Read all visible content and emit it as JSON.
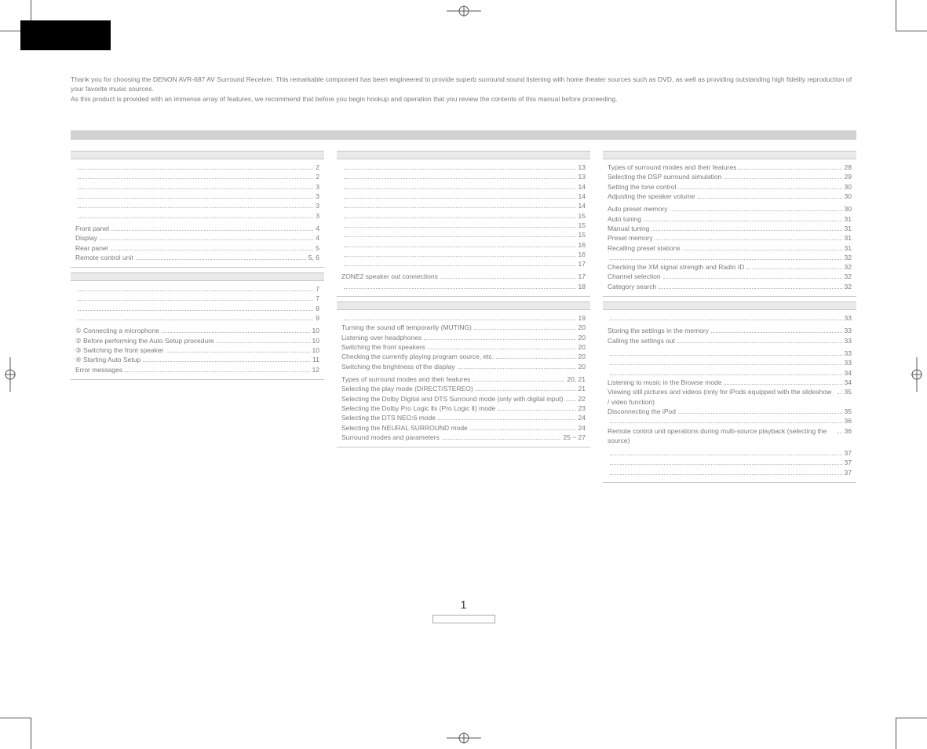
{
  "colors": {
    "text": "#7a7a7a",
    "bg": "#ffffff",
    "blackTab": "#000000",
    "hr": "#d2d2d2",
    "boxHead": "#e9e9e9",
    "border": "#c7c7c7",
    "dots": "#b5b5b5"
  },
  "typography": {
    "fontFamily": "Arial, Helvetica, sans-serif",
    "baseSize": 8.5
  },
  "intro": {
    "line1": "Thank you for choosing the DENON AVR-687 AV Surround Receiver. This remarkable component has been engineered to provide superb surround sound listening with home theater sources such as DVD, as well as providing outstanding high fidelity reproduction of your favorite music sources.",
    "line2": "As this product is provided with an immense array of features, we recommend that before you begin hookup and operation that you review the contents of this manual before proceeding."
  },
  "pageNumber": "1",
  "col1": {
    "box1": {
      "items": [
        {
          "label": "",
          "page": "2"
        },
        {
          "label": "",
          "page": "2"
        },
        {
          "label": "",
          "page": "3"
        },
        {
          "label": "",
          "page": "3"
        },
        {
          "label": "",
          "page": "3"
        },
        {
          "label": "",
          "page": "3"
        }
      ],
      "subhead1": "",
      "items2": [
        {
          "label": "Front panel",
          "page": "4"
        },
        {
          "label": "Display",
          "page": "4"
        },
        {
          "label": "Rear panel",
          "page": "5"
        },
        {
          "label": "Remote control unit",
          "page": "5, 6"
        }
      ]
    },
    "box2": {
      "items": [
        {
          "label": "",
          "page": "7"
        },
        {
          "label": "",
          "page": "7"
        },
        {
          "label": "",
          "page": "8"
        },
        {
          "label": "",
          "page": "9"
        }
      ],
      "subhead1": "",
      "items2": [
        {
          "label": "① Connecting a microphone",
          "page": "10"
        },
        {
          "label": "② Before performing the Auto Setup procedure",
          "page": "10"
        },
        {
          "label": "③ Switching the front speaker",
          "page": "10"
        },
        {
          "label": "④ Starting Auto Setup",
          "page": "11"
        },
        {
          "label": "Error messages",
          "page": "12"
        }
      ]
    }
  },
  "col2": {
    "box1": {
      "items": [
        {
          "label": "",
          "page": "13"
        },
        {
          "label": "",
          "page": "13"
        },
        {
          "label": "",
          "page": "14"
        },
        {
          "label": "",
          "page": "14"
        },
        {
          "label": "",
          "page": "14"
        },
        {
          "label": "",
          "page": "15"
        },
        {
          "label": "",
          "page": "15"
        },
        {
          "label": "",
          "page": "15"
        },
        {
          "label": "",
          "page": "16"
        },
        {
          "label": "",
          "page": "16"
        },
        {
          "label": "",
          "page": "17"
        }
      ],
      "subhead1": "",
      "items2": [
        {
          "label": "ZONE2 speaker out connections",
          "page": "17"
        },
        {
          "label": "",
          "page": "18"
        }
      ]
    },
    "box2": {
      "items": [
        {
          "label": "",
          "page": "19"
        },
        {
          "label": "Turning the sound off temporarily (MUTING)",
          "page": "20"
        },
        {
          "label": "Listening over headphones",
          "page": "20"
        },
        {
          "label": "Switching the front speakers",
          "page": "20"
        },
        {
          "label": "Checking the currently playing program source, etc.",
          "page": "20"
        },
        {
          "label": "Switching the brightness of the display",
          "page": "20"
        }
      ],
      "subhead1": "",
      "items2": [
        {
          "label": "Types of surround modes and their features",
          "page": "20, 21"
        },
        {
          "label": "Selecting the play mode (DIRECT/STEREO)",
          "page": "21"
        },
        {
          "label": "Selecting the Dolby Digital and DTS Surround mode (only with digital input)",
          "page": "22"
        },
        {
          "label": "Selecting the Dolby Pro Logic Ⅱx (Pro Logic Ⅱ) mode",
          "page": "23"
        },
        {
          "label": "Selecting the DTS NEO:6 mode",
          "page": "24"
        },
        {
          "label": "Selecting the NEURAL SURROUND mode",
          "page": "24"
        },
        {
          "label": "Surround modes and parameters",
          "page": "25 ~ 27"
        }
      ]
    }
  },
  "col3": {
    "box1": {
      "items": [
        {
          "label": "Types of surround modes and their features",
          "page": "28"
        },
        {
          "label": "Selecting the DSP surround simulation",
          "page": "29"
        },
        {
          "label": "Setting the tone control",
          "page": "30"
        },
        {
          "label": "Adjusting the speaker volume",
          "page": "30"
        }
      ],
      "subhead1": "",
      "items2": [
        {
          "label": "Auto preset memory",
          "page": "30"
        },
        {
          "label": "Auto tuning",
          "page": "31"
        },
        {
          "label": "Manual tuning",
          "page": "31"
        },
        {
          "label": "Preset memory",
          "page": "31"
        },
        {
          "label": "Recalling preset stations",
          "page": "31"
        },
        {
          "label": "",
          "page": "32"
        },
        {
          "label": "Checking the XM signal strength and Radio ID",
          "page": "32"
        },
        {
          "label": "Channel selection",
          "page": "32"
        },
        {
          "label": "Category search",
          "page": "32"
        }
      ]
    },
    "box2": {
      "items": [
        {
          "label": "",
          "page": "33"
        }
      ],
      "subhead1": "",
      "items2": [
        {
          "label": "Storing the settings in the memory",
          "page": "33"
        },
        {
          "label": "Calling the settings out",
          "page": "33"
        }
      ],
      "subhead2": "",
      "items3": [
        {
          "label": "",
          "page": "33"
        },
        {
          "label": "",
          "page": "33"
        },
        {
          "label": "",
          "page": "34"
        },
        {
          "label": "Listening to music in the Browse mode",
          "page": "34"
        },
        {
          "label": "Viewing still pictures and videos (only for iPods equipped with the slideshow / video function)",
          "page": "35"
        },
        {
          "label": "Disconnecting the iPod",
          "page": "35"
        },
        {
          "label": "",
          "page": "36"
        },
        {
          "label": "Remote control unit operations during multi-source playback (selecting the source)",
          "page": "36"
        }
      ],
      "subhead3": "",
      "items4": [
        {
          "label": "",
          "page": "37"
        },
        {
          "label": "",
          "page": "37"
        },
        {
          "label": "",
          "page": "37"
        }
      ]
    }
  }
}
